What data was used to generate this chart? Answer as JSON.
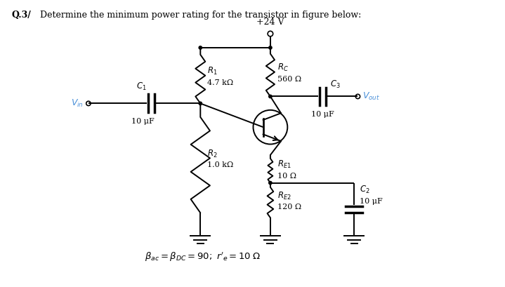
{
  "title_bold": "Q.3/",
  "title_rest": " Determine the minimum power rating for the transistor in figure below:",
  "vcc_label": "+24 V",
  "r1_label": "$R_1$",
  "r1_val": "4.7 kΩ",
  "r2_label": "$R_2$",
  "r2_val": "1.0 kΩ",
  "rc_label": "$R_C$",
  "rc_val": "560 Ω",
  "re1_label": "$R_{E1}$",
  "re1_val": "10 Ω",
  "re2_label": "$R_{E2}$",
  "re2_val": "120 Ω",
  "c1_label": "$C_1$",
  "c2_label": "$C_2$",
  "c2_val": "10 μF",
  "c3_label": "$C_3$",
  "c3_val": "10 μF",
  "c1_val": "10 μF",
  "vin_label": "$V_{in}$",
  "vout_label": "$V_{out}$",
  "footer": "$\\beta_{ac} = \\beta_{DC} = 90;\\; r'_e = 10\\; \\Omega$",
  "bg_color": "#ffffff",
  "line_color": "#000000",
  "label_color_blue": "#4a90d9"
}
